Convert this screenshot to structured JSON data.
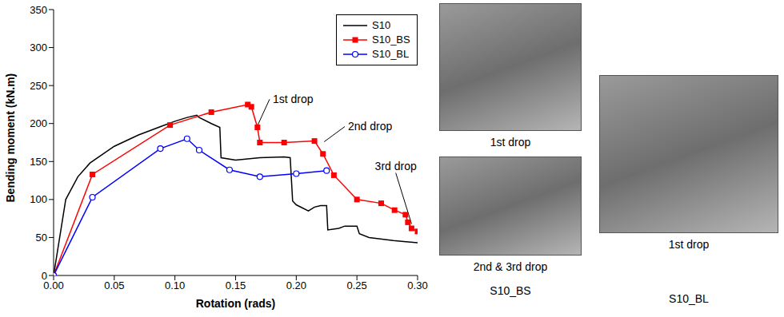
{
  "chart_data": {
    "type": "line",
    "x_label": "Rotation (rads)",
    "y_label": "Bending moment (kN.m)",
    "xlim": [
      0,
      0.3
    ],
    "ylim": [
      0,
      350
    ],
    "xticks": [
      {
        "value": 0,
        "label": "0.00"
      },
      {
        "value": 0.05,
        "label": "0.05"
      },
      {
        "value": 0.1,
        "label": "0.10"
      },
      {
        "value": 0.15,
        "label": "0.15"
      },
      {
        "value": 0.2,
        "label": "0.20"
      },
      {
        "value": 0.25,
        "label": "0.25"
      },
      {
        "value": 0.3,
        "label": "0.30"
      }
    ],
    "yticks": [
      0,
      50,
      100,
      150,
      200,
      250,
      300,
      350
    ],
    "grid": false,
    "legend": "top-right",
    "series": [
      {
        "name": "S10",
        "color": "#000000",
        "marker": "none",
        "x": [
          0,
          0.01,
          0.02,
          0.03,
          0.05,
          0.07,
          0.09,
          0.1,
          0.11,
          0.118,
          0.12,
          0.13,
          0.137,
          0.138,
          0.15,
          0.17,
          0.19,
          0.195,
          0.197,
          0.2,
          0.21,
          0.215,
          0.22,
          0.225,
          0.226,
          0.235,
          0.24,
          0.25,
          0.252,
          0.26,
          0.28,
          0.3
        ],
        "values": [
          0,
          100,
          130,
          148,
          170,
          185,
          197,
          203,
          208,
          211,
          208,
          200,
          195,
          155,
          152,
          155,
          156,
          155,
          98,
          93,
          85,
          90,
          92,
          92,
          60,
          62,
          65,
          65,
          55,
          50,
          46,
          43
        ]
      },
      {
        "name": "S10_BS",
        "color": "#ff0000",
        "marker": "square",
        "x": [
          0,
          0.032,
          0.096,
          0.13,
          0.16,
          0.163,
          0.168,
          0.17,
          0.19,
          0.215,
          0.222,
          0.231,
          0.25,
          0.27,
          0.281,
          0.29,
          0.292,
          0.295,
          0.3
        ],
        "values": [
          0,
          133,
          198,
          215,
          225,
          222,
          195,
          175,
          175,
          177,
          160,
          132,
          100,
          95,
          86,
          80,
          70,
          62,
          58
        ]
      },
      {
        "name": "S10_BL",
        "color": "#0000ff",
        "marker": "circle",
        "x": [
          0,
          0.032,
          0.088,
          0.11,
          0.12,
          0.145,
          0.17,
          0.2,
          0.225
        ],
        "values": [
          0,
          103,
          167,
          180,
          165,
          139,
          130,
          134,
          138
        ]
      }
    ],
    "annotations": [
      {
        "text": "1st drop",
        "x": 0.168,
        "y": 197,
        "text_x": 0.178,
        "text_y": 232
      },
      {
        "text": "2nd drop",
        "x": 0.223,
        "y": 176,
        "text_x": 0.24,
        "text_y": 196
      },
      {
        "text": "3rd drop",
        "x": 0.295,
        "y": 68,
        "text_x": 0.282,
        "text_y": 135
      }
    ]
  },
  "panels": [
    {
      "title": "S10_BS",
      "photos": [
        {
          "caption": "1st drop"
        },
        {
          "caption": "2nd & 3rd drop"
        }
      ]
    },
    {
      "title": "S10_BL",
      "photos": [
        {
          "caption": "1st drop"
        }
      ]
    }
  ]
}
